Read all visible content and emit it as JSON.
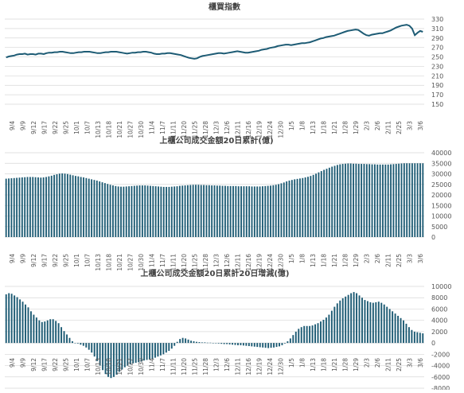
{
  "colors": {
    "line": "#1d5b74",
    "bar": "#1d5b74",
    "grid": "#d8d8d8",
    "text": "#555555"
  },
  "chart_data": [
    {
      "type": "line",
      "title": "櫃買指數",
      "ylim": [
        150,
        330
      ],
      "yticks": [
        150,
        170,
        190,
        210,
        230,
        250,
        270,
        290,
        310,
        330
      ],
      "grid": "horizontal",
      "xtick_labels": [
        "9/4",
        "9/9",
        "9/12",
        "9/17",
        "9/22",
        "9/25",
        "10/1",
        "10/7",
        "10/13",
        "10/18",
        "10/21",
        "10/27",
        "10/30",
        "11/4",
        "11/7",
        "11/11",
        "11/20",
        "11/25",
        "11/28",
        "12/3",
        "12/6",
        "12/11",
        "12/16",
        "12/19",
        "12/24",
        "12/30",
        "1/5",
        "1/8",
        "1/13",
        "1/18",
        "1/21",
        "1/28",
        "1/29",
        "2/3",
        "2/6",
        "2/11",
        "2/25",
        "3/3",
        "3/6"
      ],
      "series": [
        {
          "values": [
            249,
            251,
            252,
            253,
            255,
            256,
            256,
            257,
            255,
            256,
            256,
            255,
            257,
            257,
            256,
            258,
            259,
            259,
            260,
            260,
            261,
            261,
            260,
            259,
            258,
            258,
            259,
            260,
            260,
            261,
            261,
            261,
            260,
            259,
            258,
            258,
            259,
            260,
            260,
            261,
            261,
            261,
            260,
            259,
            258,
            257,
            258,
            259,
            259,
            260,
            260,
            261,
            261,
            260,
            259,
            257,
            256,
            256,
            257,
            257,
            258,
            258,
            257,
            256,
            255,
            254,
            252,
            250,
            248,
            247,
            246,
            247,
            250,
            252,
            253,
            254,
            255,
            256,
            257,
            258,
            258,
            257,
            258,
            259,
            260,
            261,
            262,
            261,
            260,
            259,
            259,
            260,
            261,
            262,
            263,
            265,
            266,
            267,
            269,
            270,
            271,
            273,
            274,
            275,
            276,
            276,
            275,
            276,
            277,
            278,
            279,
            279,
            280,
            281,
            283,
            285,
            287,
            289,
            290,
            292,
            293,
            294,
            295,
            297,
            299,
            301,
            303,
            305,
            306,
            307,
            308,
            307,
            303,
            299,
            296,
            295,
            297,
            298,
            299,
            300,
            300,
            302,
            304,
            306,
            309,
            312,
            314,
            316,
            317,
            318,
            316,
            310,
            296,
            301,
            305,
            303
          ]
        }
      ]
    },
    {
      "type": "bar",
      "title": "上櫃公司成交金額20日累計(億)",
      "ylim": [
        0,
        40000
      ],
      "yticks": [
        0,
        5000,
        10000,
        15000,
        20000,
        25000,
        30000,
        35000,
        40000
      ],
      "grid": "horizontal",
      "xtick_labels": [
        "9/4",
        "9/9",
        "9/12",
        "9/17",
        "9/22",
        "9/25",
        "10/1",
        "10/7",
        "10/13",
        "10/18",
        "10/21",
        "10/27",
        "10/30",
        "11/4",
        "11/7",
        "11/11",
        "11/20",
        "11/25",
        "11/28",
        "12/3",
        "12/6",
        "12/11",
        "12/16",
        "12/19",
        "12/24",
        "12/30",
        "1/5",
        "1/8",
        "1/13",
        "1/18",
        "1/21",
        "1/28",
        "1/29",
        "2/3",
        "2/6",
        "2/11",
        "2/25",
        "3/3",
        "3/6"
      ],
      "series": [
        {
          "values": [
            27700,
            27800,
            27900,
            28000,
            28100,
            28200,
            28300,
            28400,
            28500,
            28500,
            28500,
            28400,
            28300,
            28200,
            28300,
            28500,
            28800,
            29100,
            29500,
            29800,
            30100,
            30200,
            30100,
            29900,
            29600,
            29300,
            29000,
            28800,
            28500,
            28300,
            28000,
            27700,
            27400,
            27100,
            26800,
            26400,
            26000,
            25600,
            25200,
            24800,
            24500,
            24200,
            24000,
            23900,
            23900,
            24000,
            24100,
            24200,
            24300,
            24400,
            24500,
            24500,
            24500,
            24400,
            24300,
            24200,
            24100,
            24000,
            23900,
            23800,
            23800,
            23800,
            23900,
            24000,
            24100,
            24300,
            24400,
            24500,
            24600,
            24700,
            24800,
            24800,
            24800,
            24700,
            24700,
            24600,
            24600,
            24500,
            24500,
            24400,
            24400,
            24300,
            24300,
            24200,
            24200,
            24200,
            24200,
            24100,
            24100,
            24100,
            24100,
            24100,
            24000,
            24000,
            24000,
            24000,
            24100,
            24200,
            24300,
            24400,
            24600,
            24800,
            25100,
            25500,
            25900,
            26400,
            26800,
            27100,
            27400,
            27600,
            27800,
            28000,
            28300,
            28600,
            29000,
            29500,
            30100,
            30700,
            31300,
            31900,
            32400,
            32900,
            33400,
            33800,
            34200,
            34500,
            34700,
            34800,
            34900,
            34900,
            34800,
            34800,
            34700,
            34700,
            34700,
            34600,
            34600,
            34500,
            34500,
            34400,
            34400,
            34400,
            34400,
            34400,
            34500,
            34600,
            34700,
            34800,
            34900,
            35000,
            35000,
            35000,
            35000,
            35000,
            35000,
            35000,
            35000
          ]
        }
      ]
    },
    {
      "type": "bar",
      "title": "上櫃公司成交金額20日累計20日增減(億)",
      "ylim": [
        -8000,
        10000
      ],
      "yticks": [
        -8000,
        -6000,
        -4000,
        -2000,
        0,
        2000,
        4000,
        6000,
        8000,
        10000
      ],
      "grid": "horizontal",
      "xtick_labels": [
        "9/4",
        "9/9",
        "9/12",
        "9/17",
        "9/22",
        "9/25",
        "10/1",
        "10/7",
        "10/13",
        "10/18",
        "10/21",
        "10/27",
        "10/30",
        "11/4",
        "11/7",
        "11/11",
        "11/20",
        "11/25",
        "11/28",
        "12/3",
        "12/6",
        "12/11",
        "12/16",
        "12/19",
        "12/24",
        "12/30",
        "1/5",
        "1/8",
        "1/13",
        "1/18",
        "1/21",
        "1/28",
        "1/29",
        "2/3",
        "2/6",
        "2/11",
        "2/25",
        "3/3",
        "3/6"
      ],
      "series": [
        {
          "values": [
            8600,
            8800,
            8700,
            8400,
            8100,
            7700,
            7300,
            6800,
            6300,
            5600,
            5000,
            4500,
            4000,
            3700,
            3800,
            4000,
            4200,
            4200,
            3900,
            3500,
            2800,
            2100,
            1500,
            900,
            300,
            0,
            -100,
            -300,
            -500,
            -800,
            -1200,
            -1700,
            -2400,
            -3200,
            -4000,
            -4800,
            -5500,
            -6000,
            -6200,
            -6000,
            -5600,
            -5100,
            -4700,
            -4300,
            -4000,
            -3800,
            -3600,
            -3500,
            -3400,
            -3300,
            -3100,
            -3000,
            -2900,
            -2800,
            -2600,
            -2400,
            -2200,
            -2000,
            -1700,
            -1400,
            -1000,
            -500,
            200,
            700,
            900,
            800,
            600,
            400,
            300,
            200,
            150,
            100,
            100,
            50,
            50,
            0,
            -50,
            -100,
            -150,
            -200,
            -200,
            -250,
            -300,
            -350,
            -400,
            -400,
            -450,
            -500,
            -550,
            -600,
            -650,
            -700,
            -750,
            -800,
            -850,
            -900,
            -850,
            -800,
            -700,
            -600,
            -400,
            -100,
            300,
            800,
            1400,
            2000,
            2500,
            2800,
            3000,
            3000,
            3000,
            3100,
            3300,
            3500,
            3800,
            4100,
            4500,
            5000,
            5700,
            6400,
            7000,
            7500,
            7900,
            8200,
            8500,
            8800,
            9000,
            8800,
            8400,
            8000,
            7600,
            7400,
            7200,
            7100,
            7200,
            7300,
            7100,
            6800,
            6400,
            6000,
            5600,
            5200,
            4800,
            4400,
            4000,
            3400,
            2800,
            2300,
            2000,
            1900,
            1800,
            1700
          ]
        }
      ]
    }
  ]
}
